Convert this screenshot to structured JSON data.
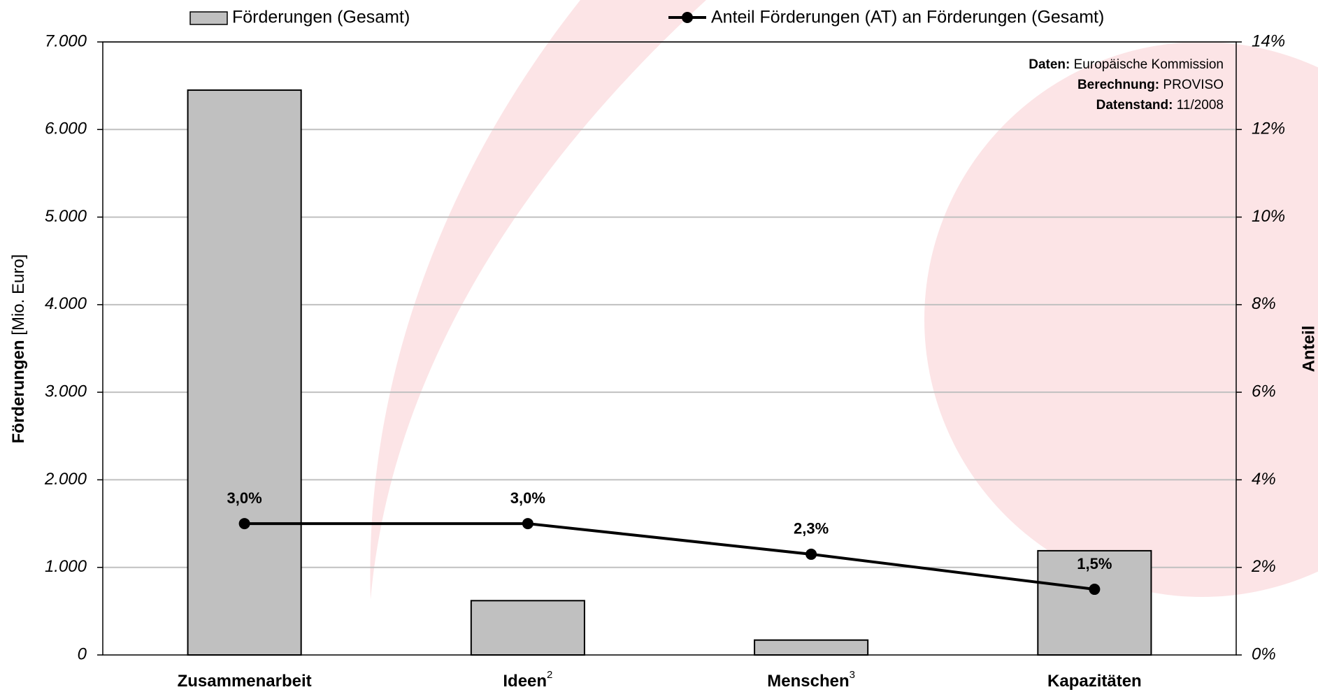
{
  "chart_data": {
    "type": "bar",
    "categories": [
      "Zusammenarbeit",
      "Ideen",
      "Menschen",
      "Kapazitäten"
    ],
    "category_notes": [
      null,
      "2",
      "3",
      null
    ],
    "series": [
      {
        "name": "Förderungen (Gesamt)",
        "type": "bar",
        "color": "#c0c0c0",
        "values": [
          6450,
          620,
          170,
          1190
        ]
      },
      {
        "name": "Anteil Förderungen (AT) an Förderungen (Gesamt)",
        "type": "line",
        "color": "#000000",
        "axis": "y2",
        "values": [
          3.0,
          3.0,
          2.3,
          1.5
        ],
        "value_labels": [
          "3,0%",
          "3,0%",
          "2,3%",
          "1,5%"
        ]
      }
    ],
    "ylabel": {
      "main": "Förderungen",
      "unit": "[Mio. Euro]"
    },
    "y2label": "Anteil",
    "ylim": [
      0,
      7000
    ],
    "yticks": [
      0,
      {
        "value": 1000,
        "label": "1.000"
      },
      {
        "value": 2000,
        "label": "2.000"
      },
      {
        "value": 3000,
        "label": "3.000"
      },
      {
        "value": 4000,
        "label": "4.000"
      },
      {
        "value": 5000,
        "label": "5.000"
      },
      {
        "value": 6000,
        "label": "6.000"
      },
      {
        "value": 7000,
        "label": "7.000"
      }
    ],
    "y2lim": [
      0,
      14
    ],
    "y2ticks": [
      {
        "value": 0,
        "label": "0%"
      },
      {
        "value": 2,
        "label": "2%"
      },
      {
        "value": 4,
        "label": "4%"
      },
      {
        "value": 6,
        "label": "6%"
      },
      {
        "value": 8,
        "label": "8%"
      },
      {
        "value": 10,
        "label": "10%"
      },
      {
        "value": 12,
        "label": "12%"
      },
      {
        "value": 14,
        "label": "14%"
      }
    ],
    "grid": true,
    "source": [
      {
        "key": "Daten:",
        "value": "Europäische Kommission"
      },
      {
        "key": "Berechnung:",
        "value": "PROVISO"
      },
      {
        "key": "Datenstand:",
        "value": "11/2008"
      }
    ]
  }
}
